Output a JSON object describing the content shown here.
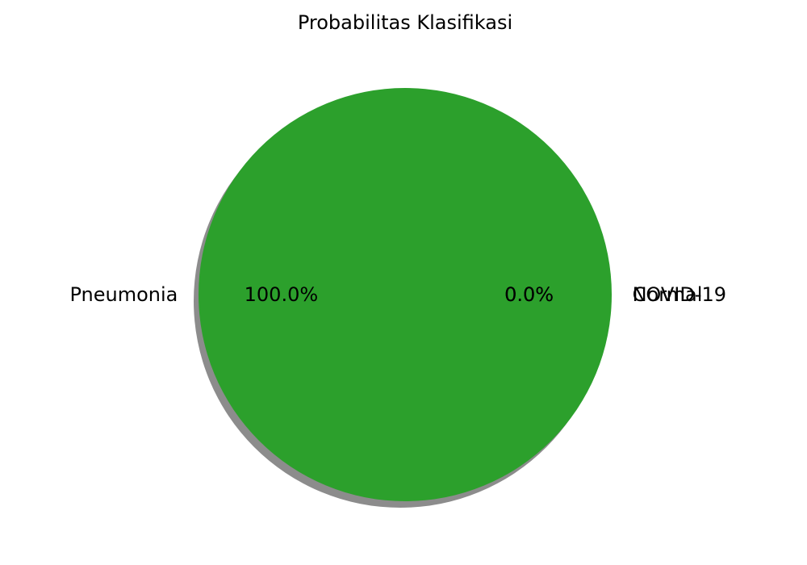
{
  "chart_data": {
    "type": "pie",
    "title": "Probabilitas Klasifikasi",
    "labels": [
      "COVID-19",
      "Normal",
      "Pneumonia"
    ],
    "values": [
      0.0,
      0.0,
      100.0
    ],
    "pct_labels": [
      "0.0%",
      "0.0%",
      "100.0%"
    ],
    "colors": [
      "#1f77b4",
      "#ff7f0e",
      "#2ca02c"
    ],
    "shadow": true,
    "legend": false
  }
}
